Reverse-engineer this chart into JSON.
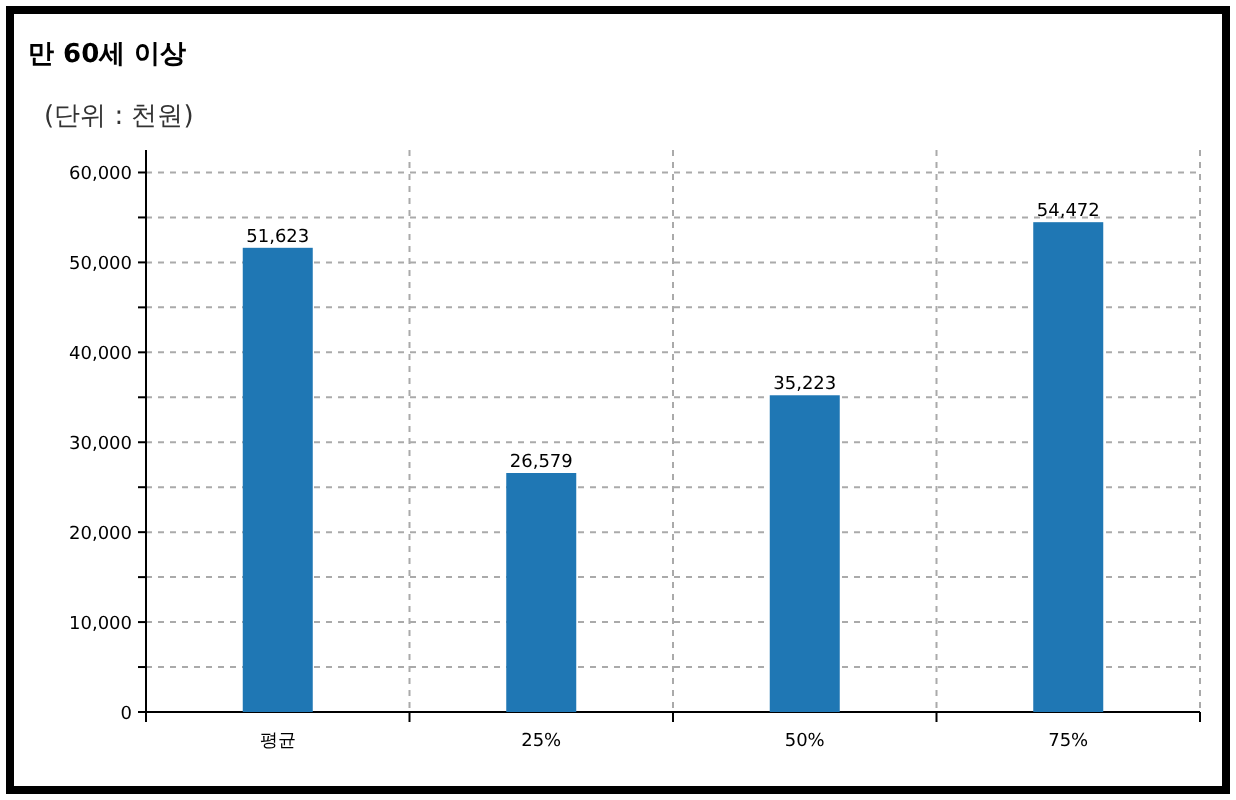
{
  "chart_data": {
    "type": "bar",
    "title": "만 60세 이상",
    "subtitle": "(단위 : 천원)",
    "categories": [
      "평균",
      "25%",
      "50%",
      "75%"
    ],
    "values": [
      51623,
      26579,
      35223,
      54472
    ],
    "value_labels": [
      "51,623",
      "26,579",
      "35,223",
      "54,472"
    ],
    "color": "#1f77b4",
    "ylim": [
      0,
      62500
    ],
    "yticks": [
      0,
      {
        "value": 5000,
        "label": null
      },
      {
        "value": 10000,
        "label": "10,000"
      },
      {
        "value": 15000,
        "label": null
      },
      {
        "value": 20000,
        "label": "20,000"
      },
      {
        "value": 25000,
        "label": null
      },
      {
        "value": 30000,
        "label": "30,000"
      },
      {
        "value": 35000,
        "label": null
      },
      {
        "value": 40000,
        "label": "40,000"
      },
      {
        "value": 45000,
        "label": null
      },
      {
        "value": 50000,
        "label": "50,000"
      },
      {
        "value": 55000,
        "label": null
      },
      {
        "value": 60000,
        "label": "60,000"
      }
    ],
    "grid": true
  }
}
